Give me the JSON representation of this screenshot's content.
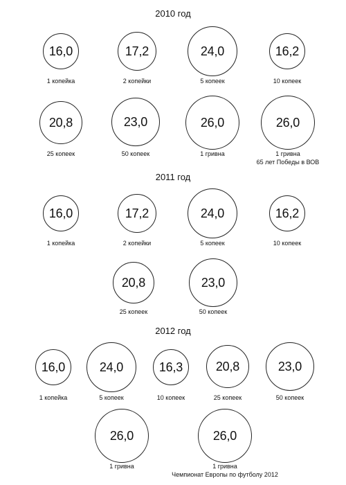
{
  "years": [
    {
      "title": "2010 год",
      "coins": [
        {
          "value": "16,0",
          "label": "1 копейка"
        },
        {
          "value": "17,2",
          "label": "2 копейки"
        },
        {
          "value": "24,0",
          "label": "5 копеек"
        },
        {
          "value": "16,2",
          "label": "10 копеек"
        },
        {
          "value": "20,8",
          "label": "25 копеек"
        },
        {
          "value": "23,0",
          "label": "50 копеек"
        },
        {
          "value": "26,0",
          "label": "1 гривна"
        },
        {
          "value": "26,0",
          "label": "1 гривна",
          "label2": "65 лет Победы в ВОВ"
        }
      ]
    },
    {
      "title": "2011 год",
      "coins": [
        {
          "value": "16,0",
          "label": "1 копейка"
        },
        {
          "value": "17,2",
          "label": "2 копейки"
        },
        {
          "value": "24,0",
          "label": "5 копеек"
        },
        {
          "value": "16,2",
          "label": "10 копеек"
        },
        {
          "value": "20,8",
          "label": "25 копеек"
        },
        {
          "value": "23,0",
          "label": "50 копеек"
        }
      ]
    },
    {
      "title": "2012 год",
      "coins": [
        {
          "value": "16,0",
          "label": "1 копейка"
        },
        {
          "value": "24,0",
          "label": "5 копеек"
        },
        {
          "value": "16,3",
          "label": "10 копеек"
        },
        {
          "value": "20,8",
          "label": "25 копеек"
        },
        {
          "value": "23,0",
          "label": "50 копеек"
        },
        {
          "value": "26,0",
          "label": "1 гривна"
        },
        {
          "value": "26,0",
          "label": "1 гривна",
          "label2": "Чемпионат Европы по футболу 2012"
        }
      ]
    }
  ]
}
